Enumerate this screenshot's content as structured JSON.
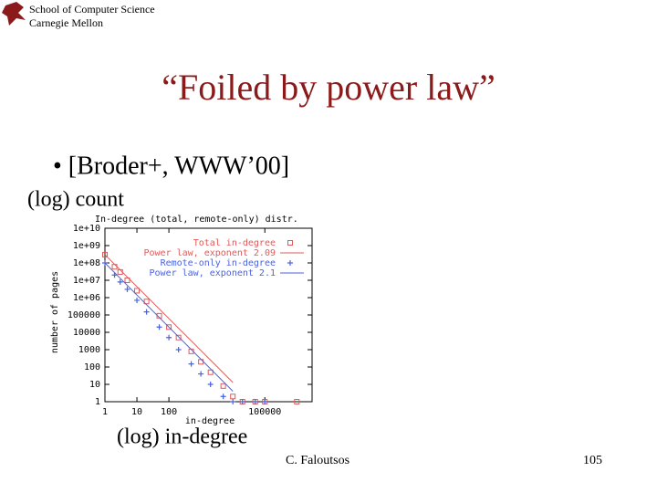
{
  "header": {
    "line1": "School of Computer Science",
    "line2": "Carnegie Mellon"
  },
  "title": "“Foiled by power law”",
  "bullet": "• [Broder+, WWW’00]",
  "y_annotation": "(log) count",
  "x_annotation": "(log) in-degree",
  "footer": {
    "author": "C. Faloutsos",
    "page": "105"
  },
  "chart_data": {
    "type": "scatter",
    "title": "In-degree (total, remote-only) distr.",
    "xlabel": "in-degree",
    "ylabel": "number of pages",
    "xscale": "log",
    "yscale": "log",
    "xlim": [
      1,
      3000000
    ],
    "ylim": [
      1,
      10000000000
    ],
    "xticks": [
      1,
      10,
      100,
      100000
    ],
    "yticks": [
      1,
      10,
      100,
      1000,
      10000,
      100000,
      {
        "value": 1000000,
        "label": "1e+06"
      },
      {
        "value": 10000000,
        "label": "1e+07"
      },
      {
        "value": 100000000,
        "label": "1e+08"
      },
      {
        "value": 1000000000,
        "label": "1e+09"
      },
      {
        "value": 10000000000,
        "label": "1e+10"
      }
    ],
    "legend": "upper right",
    "series": [
      {
        "name": "Total in-degree",
        "kind": "square",
        "color": "#e05a5a",
        "x": [
          1,
          2,
          3,
          5,
          10,
          20,
          50,
          100,
          200,
          500,
          1000,
          2000,
          5000,
          10000,
          20000,
          50000,
          100000,
          1000000
        ],
        "values": [
          300000000,
          60000000,
          30000000,
          10000000,
          2500000,
          600000,
          90000,
          20000,
          5000,
          800,
          200,
          50,
          8,
          2,
          1,
          1,
          1,
          1
        ]
      },
      {
        "name": "Power law, exponent 2.09",
        "kind": "line",
        "color": "#e05a5a",
        "x": [
          1,
          10000
        ],
        "values": [
          300000000,
          13
        ]
      },
      {
        "name": "Remote-only in-degree",
        "kind": "plus",
        "color": "#4a62e0",
        "x": [
          1,
          2,
          3,
          5,
          10,
          20,
          50,
          100,
          200,
          500,
          1000,
          2000,
          5000,
          10000,
          20000,
          50000,
          100000
        ],
        "values": [
          100000000,
          20000000,
          8000000,
          3000000,
          700000,
          150000,
          20000,
          5000,
          1000,
          150,
          40,
          10,
          2,
          1,
          1,
          1,
          1
        ]
      },
      {
        "name": "Power law, exponent 2.1",
        "kind": "line",
        "color": "#4a62e0",
        "x": [
          1,
          10000
        ],
        "values": [
          100000000,
          4
        ]
      }
    ]
  }
}
